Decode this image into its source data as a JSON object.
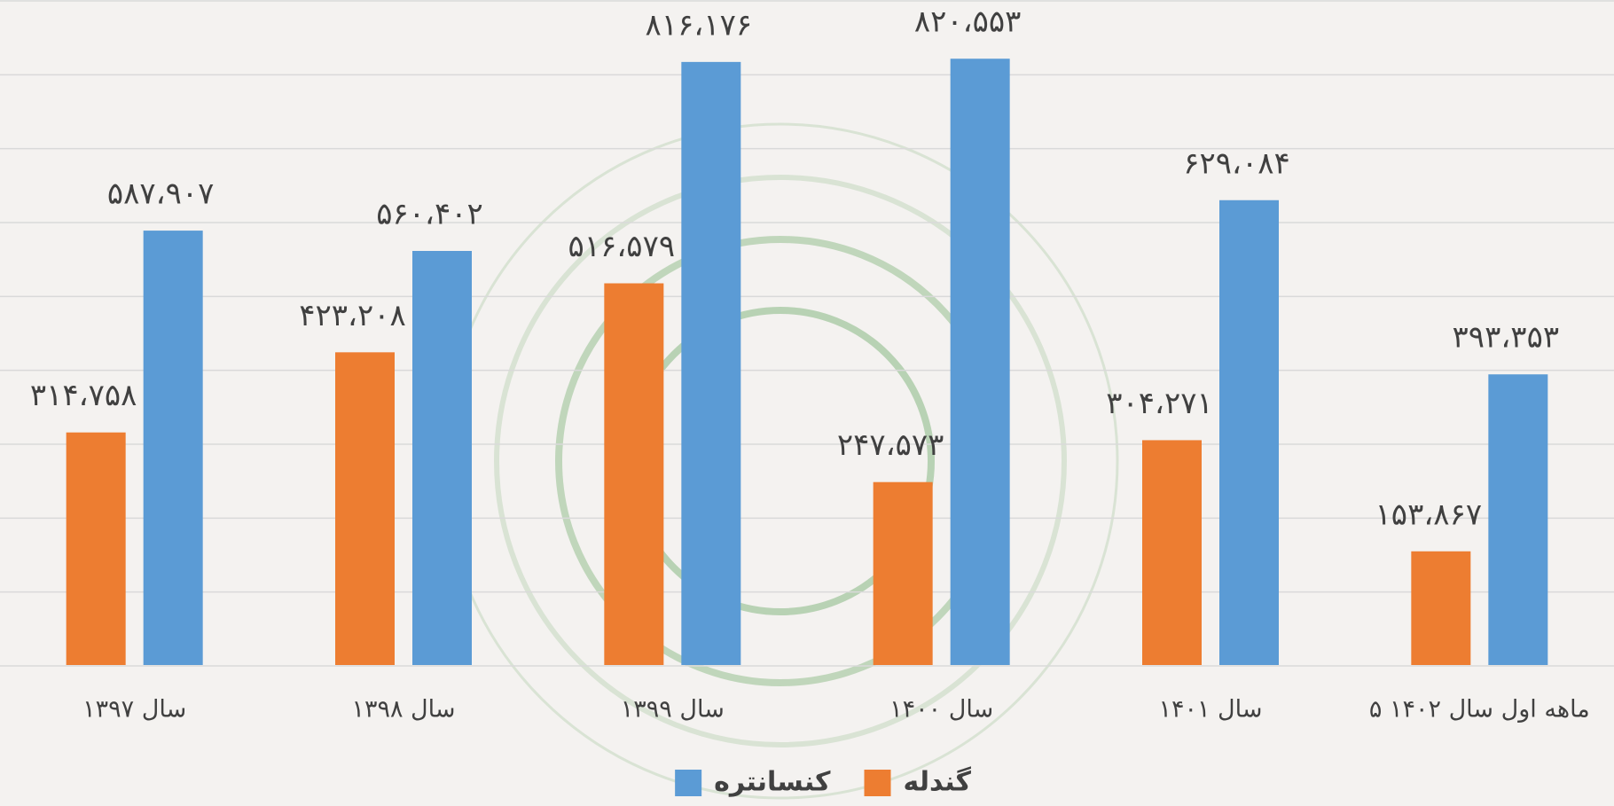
{
  "chart_data": {
    "type": "bar",
    "categories": [
      "سال ۱۳۹۷",
      "سال ۱۳۹۸",
      "سال ۱۳۹۹",
      "سال ۱۴۰۰",
      "سال ۱۴۰۱",
      "۵ ماهه اول سال ۱۴۰۲"
    ],
    "series": [
      {
        "name": "گندله",
        "color": "#ed7d31",
        "values": [
          314758,
          423208,
          516579,
          247573,
          304271,
          153867
        ],
        "value_labels": [
          "۳۱۴،۷۵۸",
          "۴۲۳،۲۰۸",
          "۵۱۶،۵۷۹",
          "۲۴۷،۵۷۳",
          "۳۰۴،۲۷۱",
          "۱۵۳،۸۶۷"
        ]
      },
      {
        "name": "کنسانتره",
        "color": "#5b9bd5",
        "values": [
          587907,
          560402,
          816176,
          820553,
          629084,
          393353
        ],
        "value_labels": [
          "۵۸۷،۹۰۷",
          "۵۶۰،۴۰۲",
          "۸۱۶،۱۷۶",
          "۸۲۰،۵۵۳",
          "۶۲۹،۰۸۴",
          "۳۹۳،۳۵۳"
        ]
      }
    ],
    "ylim": [
      0,
      900000
    ],
    "yticks": [
      0,
      100000,
      200000,
      300000,
      400000,
      500000,
      600000,
      700000,
      800000,
      900000
    ],
    "grid": true
  }
}
